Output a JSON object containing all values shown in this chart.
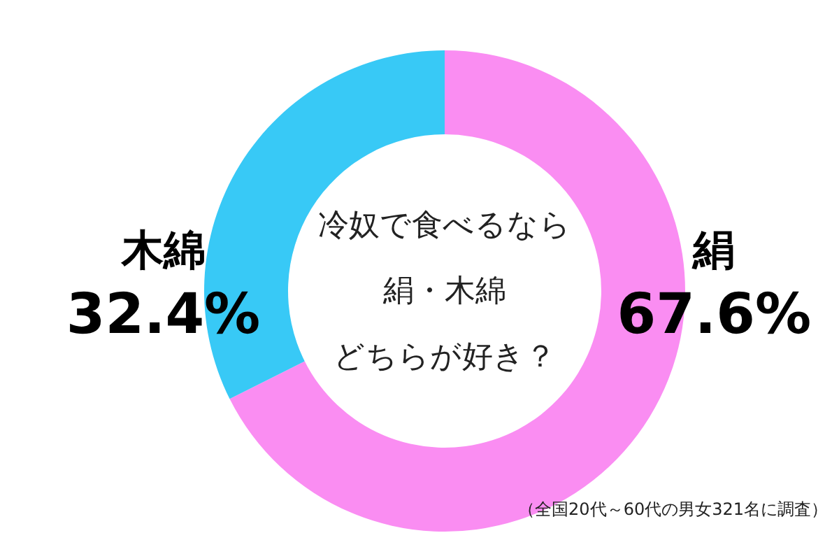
{
  "chart_data": {
    "type": "donut",
    "title": "冷奴で食べるなら",
    "subtitle": "絹・木綿",
    "categories": [
      "絹",
      "木綿"
    ],
    "values": [
      67.6,
      32.4
    ],
    "colors": [
      "#fa8df2",
      "#38c9f6"
    ],
    "value_labels": [
      "67.6%",
      "32.4%"
    ],
    "annotations": [
      {
        "text": "どちらが好き？"
      },
      "（全国20代～60代の男女321名に調査）"
    ]
  }
}
